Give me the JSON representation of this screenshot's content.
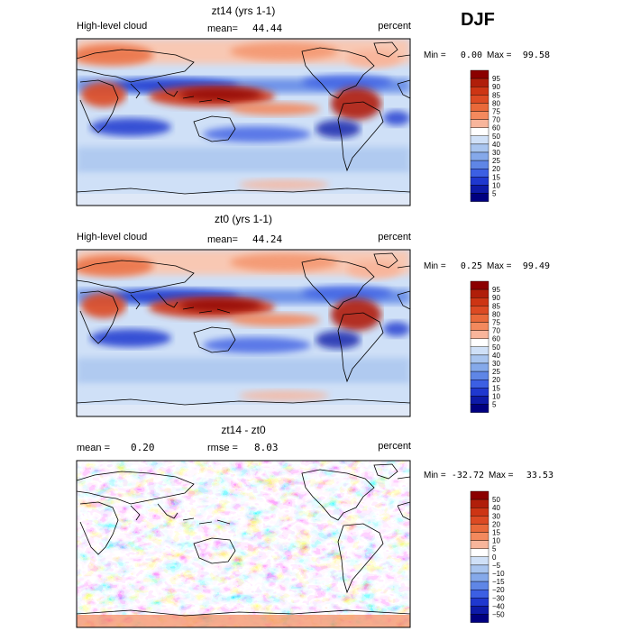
{
  "season": "DJF",
  "chart_data": [
    {
      "type": "heatmap",
      "title": "zt14 (yrs 1-1)",
      "field": "High-level cloud",
      "mean_label": "mean=",
      "mean_value": "44.44",
      "units": "percent",
      "min_label": "Min =",
      "min_value": "0.00",
      "max_label": "Max =",
      "max_value": "99.58",
      "levels": [
        "95",
        "90",
        "85",
        "80",
        "75",
        "70",
        "60",
        "50",
        "40",
        "30",
        "25",
        "20",
        "15",
        "10",
        "5"
      ],
      "colors": [
        "#8b0000",
        "#b01e0a",
        "#cd3514",
        "#dc4a23",
        "#e9693a",
        "#f3895d",
        "#f8b59b",
        "#ffffff",
        "#cfe0f7",
        "#a9c5ef",
        "#85a9ea",
        "#5f86e6",
        "#3c5fe3",
        "#1f38cf",
        "#0d1aa8",
        "#000080"
      ]
    },
    {
      "type": "heatmap",
      "title": "zt0 (yrs 1-1)",
      "field": "High-level cloud",
      "mean_label": "mean=",
      "mean_value": "44.24",
      "units": "percent",
      "min_label": "Min =",
      "min_value": "0.25",
      "max_label": "Max =",
      "max_value": "99.49",
      "levels": [
        "95",
        "90",
        "85",
        "80",
        "75",
        "70",
        "60",
        "50",
        "40",
        "30",
        "25",
        "20",
        "15",
        "10",
        "5"
      ],
      "colors": [
        "#8b0000",
        "#b01e0a",
        "#cd3514",
        "#dc4a23",
        "#e9693a",
        "#f3895d",
        "#f8b59b",
        "#ffffff",
        "#cfe0f7",
        "#a9c5ef",
        "#85a9ea",
        "#5f86e6",
        "#3c5fe3",
        "#1f38cf",
        "#0d1aa8",
        "#000080"
      ]
    },
    {
      "type": "heatmap",
      "title": "zt14 - zt0",
      "mean_label": "mean =",
      "mean_value": "0.20",
      "rmse_label": "rmse =",
      "rmse_value": "8.03",
      "units": "percent",
      "min_label": "Min =",
      "min_value": "-32.72",
      "max_label": "Max =",
      "max_value": "33.53",
      "levels": [
        "50",
        "40",
        "30",
        "20",
        "15",
        "10",
        "5",
        "0",
        "−5",
        "−10",
        "−15",
        "−20",
        "−30",
        "−40",
        "−50"
      ],
      "colors": [
        "#8b0000",
        "#b01e0a",
        "#cd3514",
        "#dc4a23",
        "#e9693a",
        "#f3895d",
        "#f8b59b",
        "#ffffff",
        "#cfe0f7",
        "#a9c5ef",
        "#85a9ea",
        "#5f86e6",
        "#3c5fe3",
        "#1f38cf",
        "#0d1aa8",
        "#000080"
      ]
    }
  ]
}
